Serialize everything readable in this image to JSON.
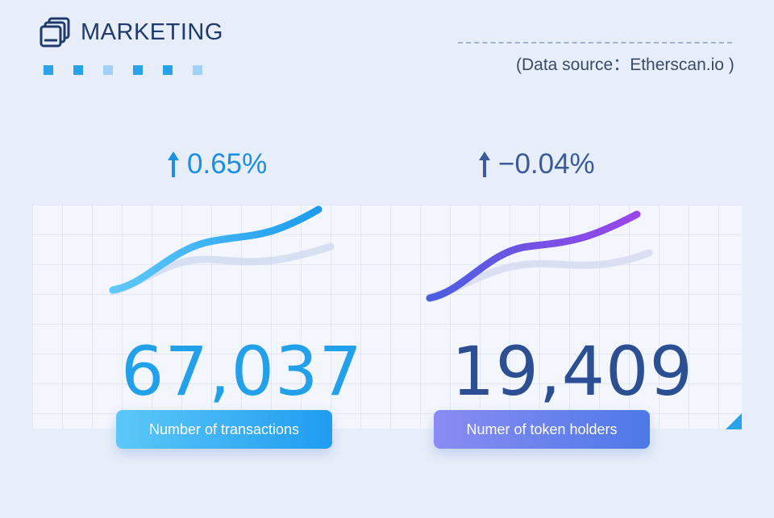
{
  "header": {
    "title": "MARKETING",
    "logo_icon": "stacked-windows-icon"
  },
  "decor": {
    "square_colors": [
      "#2aa2ea",
      "#2aa2ea",
      "#9fd2f3",
      "#2aa2ea",
      "#2aa2ea",
      "#9fd2f3"
    ]
  },
  "source": {
    "text": "(Data source：Etherscan.io )"
  },
  "metrics": [
    {
      "change": "0.65%",
      "change_icon": "arrow-up-icon",
      "value": "67,037",
      "label": "Number of  transactions",
      "color": "#22a0ea"
    },
    {
      "change": "−0.04%",
      "change_icon": "arrow-up-icon",
      "value": "19,409",
      "label": "Numer of token holders",
      "color": "#2c4f93"
    }
  ]
}
